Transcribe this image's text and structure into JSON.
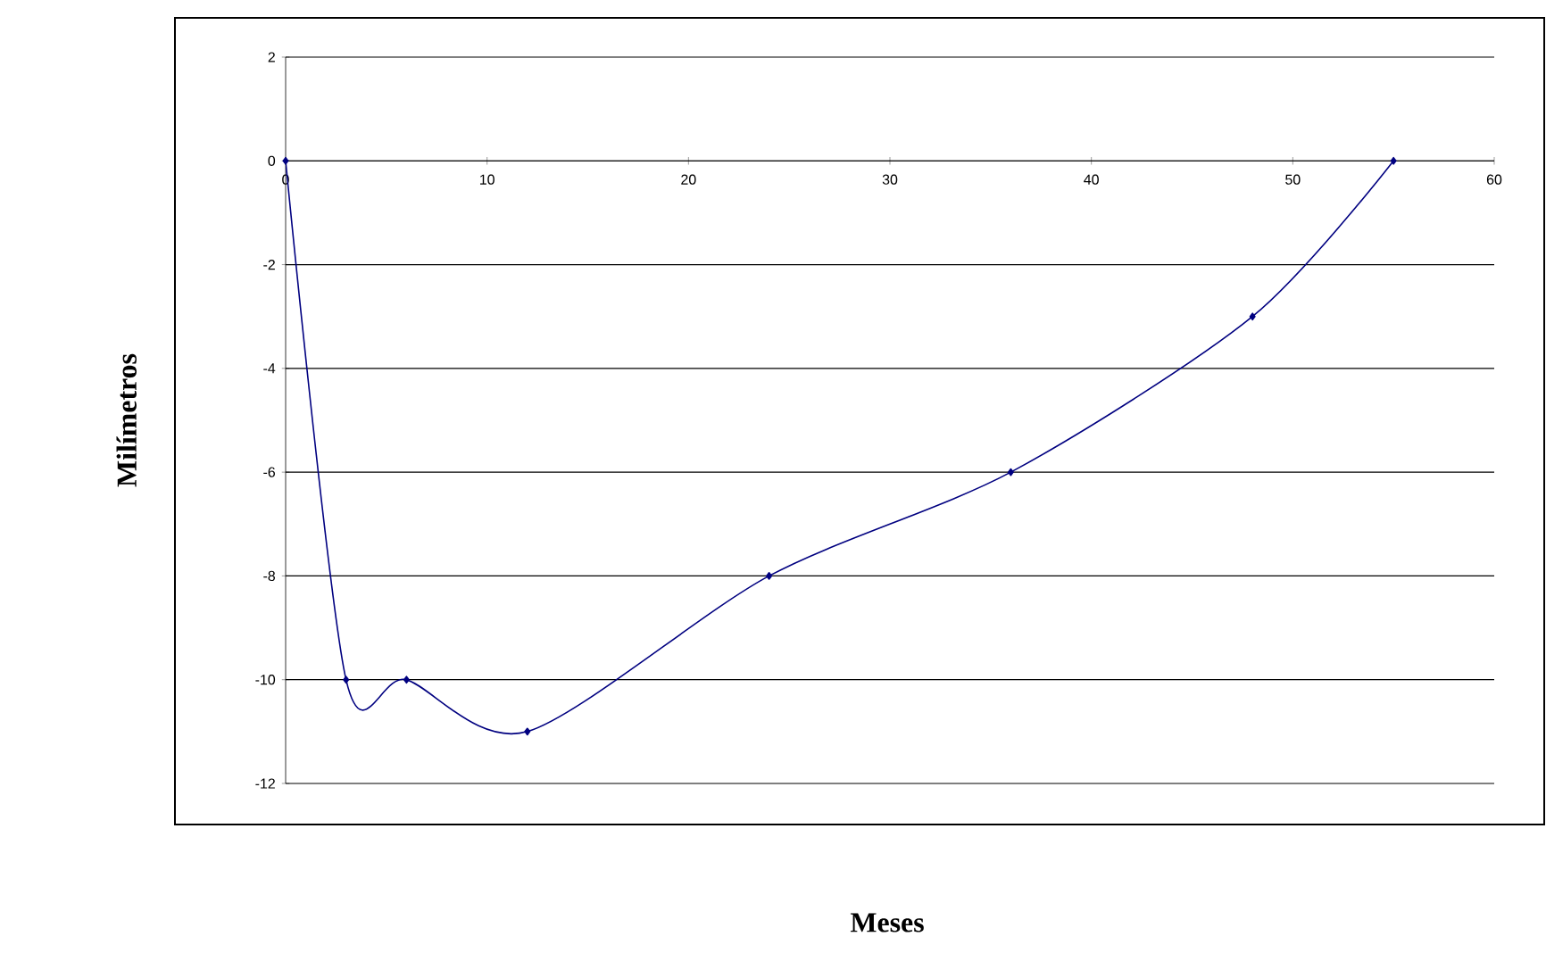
{
  "chart_data": {
    "type": "line",
    "xlabel": "Meses",
    "ylabel": "Milímetros",
    "x": [
      0,
      3,
      6,
      12,
      24,
      36,
      48,
      55
    ],
    "values": [
      0,
      -10,
      -10,
      -11,
      -8,
      -6,
      -3,
      0
    ],
    "color": "#000080",
    "xlim": [
      0,
      60
    ],
    "ylim": [
      -12,
      2
    ],
    "xticks": [
      0,
      10,
      20,
      30,
      40,
      50,
      60
    ],
    "yticks": [
      -12,
      -10,
      -8,
      -6,
      -4,
      -2,
      0,
      2
    ],
    "grid": "y",
    "marker": "diamond",
    "line_style": "solid"
  }
}
